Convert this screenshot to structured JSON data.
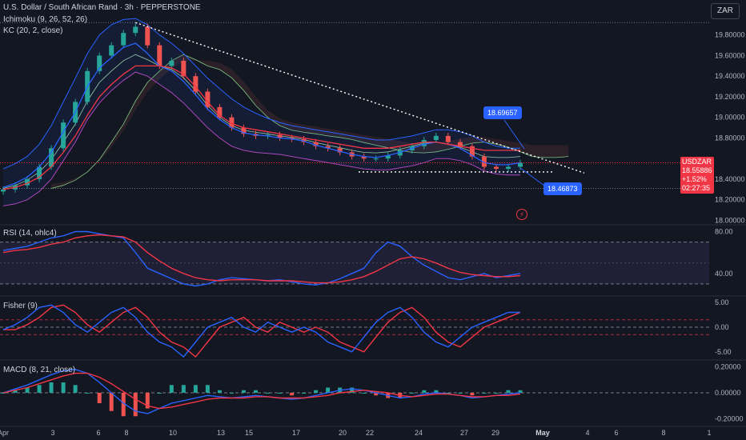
{
  "header": {
    "title": "U.S. Dollar / South African Rand · 3h · PEPPERSTONE",
    "ichimoku": "Ichimoku (9, 26, 52, 26)",
    "kc": "KC (20, 2, close)",
    "currency": "ZAR"
  },
  "price_panel": {
    "symbol": "USDZAR",
    "last_price": "18.55886",
    "change": "+1.52%",
    "countdown": "02:27:35",
    "callout_high": "18.69657",
    "callout_low": "18.46873"
  },
  "indicators": {
    "rsi": "RSI (14, ohlc4)",
    "fisher": "Fisher (9)",
    "macd": "MACD (8, 21, close)"
  },
  "colors": {
    "background": "#131722",
    "up": "#26a69a",
    "down": "#ef5350",
    "blue": "#2962ff",
    "red": "#f23645"
  },
  "chart_data": [
    {
      "type": "candlestick",
      "panel": "price",
      "yticks": [
        "19.80000",
        "19.60000",
        "19.40000",
        "19.20000",
        "19.00000",
        "18.80000",
        "18.40000",
        "18.20000",
        "18.00000"
      ],
      "ylim": [
        17.98,
        20.0
      ],
      "xticks": [
        "Apr",
        "3",
        "6",
        "8",
        "10",
        "13",
        "15",
        "17",
        "20",
        "22",
        "24",
        "27",
        "29",
        "May",
        "4",
        "6",
        "8",
        "1"
      ],
      "close": [
        18.3,
        18.34,
        18.4,
        18.52,
        18.7,
        18.95,
        19.15,
        19.45,
        19.6,
        19.7,
        19.82,
        19.88,
        19.7,
        19.5,
        19.55,
        19.4,
        19.25,
        19.1,
        19.0,
        18.9,
        18.84,
        18.82,
        18.83,
        18.8,
        18.79,
        18.76,
        18.72,
        18.7,
        18.66,
        18.62,
        18.6,
        18.6,
        18.63,
        18.68,
        18.72,
        18.78,
        18.82,
        18.76,
        18.72,
        18.62,
        18.52,
        18.5,
        18.52,
        18.55886
      ],
      "tenkan": [
        18.32,
        18.36,
        18.42,
        18.52,
        18.66,
        18.86,
        19.05,
        19.3,
        19.48,
        19.58,
        19.68,
        19.72,
        19.62,
        19.5,
        19.45,
        19.35,
        19.22,
        19.08,
        18.98,
        18.9,
        18.85,
        18.83,
        18.82,
        18.8,
        18.79,
        18.77,
        18.73,
        18.7,
        18.67,
        18.64,
        18.62,
        18.61,
        18.63,
        18.66,
        18.7,
        18.74,
        18.76,
        18.74,
        18.7,
        18.63,
        18.56,
        18.54,
        18.54,
        18.56
      ],
      "kijun": [
        18.3,
        18.32,
        18.36,
        18.42,
        18.52,
        18.66,
        18.82,
        19.02,
        19.2,
        19.32,
        19.42,
        19.5,
        19.5,
        19.5,
        19.48,
        19.42,
        19.3,
        19.15,
        19.02,
        18.94,
        18.9,
        18.88,
        18.86,
        18.84,
        18.82,
        18.8,
        18.78,
        18.76,
        18.74,
        18.72,
        18.7,
        18.7,
        18.7,
        18.72,
        18.74,
        18.76,
        18.76,
        18.74,
        18.72,
        18.7,
        18.68,
        18.68,
        18.68,
        18.68
      ],
      "kc_upper": [
        18.5,
        18.55,
        18.62,
        18.74,
        18.92,
        19.15,
        19.38,
        19.62,
        19.8,
        19.9,
        19.95,
        19.96,
        19.9,
        19.8,
        19.72,
        19.62,
        19.5,
        19.38,
        19.28,
        19.18,
        19.1,
        19.04,
        18.99,
        18.95,
        18.92,
        18.9,
        18.88,
        18.86,
        18.84,
        18.82,
        18.8,
        18.78,
        18.78,
        18.8,
        18.82,
        18.85,
        18.88,
        18.88,
        18.86,
        18.82,
        18.76,
        18.72,
        18.7,
        18.7
      ],
      "kc_lower": [
        18.14,
        18.16,
        18.2,
        18.28,
        18.4,
        18.58,
        18.76,
        18.98,
        19.14,
        19.26,
        19.36,
        19.44,
        19.4,
        19.32,
        19.24,
        19.14,
        19.02,
        18.9,
        18.8,
        18.72,
        18.68,
        18.66,
        18.65,
        18.64,
        18.62,
        18.6,
        18.58,
        18.56,
        18.54,
        18.52,
        18.5,
        18.49,
        18.49,
        18.51,
        18.53,
        18.56,
        18.6,
        18.6,
        18.58,
        18.54,
        18.48,
        18.45,
        18.44,
        18.44
      ],
      "trendline": [
        [
          11,
          19.92
        ],
        [
          43,
          18.46
        ]
      ]
    },
    {
      "type": "line",
      "panel": "rsi",
      "title": "RSI (14, ohlc4)",
      "yticks": [
        "80.00",
        "40.00"
      ],
      "ylim": [
        20,
        85
      ],
      "bands": [
        70,
        30
      ],
      "rsi": [
        62,
        64,
        66,
        70,
        74,
        76,
        80,
        80,
        78,
        76,
        74,
        60,
        45,
        40,
        35,
        30,
        28,
        30,
        34,
        36,
        35,
        34,
        33,
        34,
        32,
        30,
        29,
        31,
        35,
        40,
        45,
        60,
        70,
        66,
        56,
        48,
        42,
        36,
        34,
        37,
        40,
        36,
        38,
        40
      ],
      "signal": [
        60,
        62,
        63,
        65,
        68,
        70,
        74,
        76,
        77,
        76,
        75,
        70,
        60,
        52,
        45,
        40,
        36,
        34,
        33,
        34,
        34,
        34,
        33,
        33,
        33,
        32,
        31,
        31,
        32,
        34,
        37,
        42,
        48,
        54,
        56,
        54,
        50,
        45,
        41,
        39,
        38,
        37,
        37,
        38
      ]
    },
    {
      "type": "line",
      "panel": "fisher",
      "title": "Fisher (9)",
      "yticks": [
        "5.00",
        "0.00",
        "-5.00"
      ],
      "ylim": [
        -6,
        6
      ],
      "fisher": [
        -0.5,
        0.5,
        2,
        4,
        4.5,
        3,
        0.5,
        -1,
        1,
        3,
        4,
        2,
        -1,
        -3,
        -4,
        -6,
        -3,
        0,
        1,
        2,
        0,
        -1,
        1,
        0,
        -1,
        0,
        -1,
        -3,
        -4,
        -5,
        -2,
        1,
        3,
        4,
        2,
        -1,
        -3,
        -4,
        -2,
        0,
        1,
        2,
        3,
        3
      ]
    },
    {
      "type": "bar",
      "panel": "macd",
      "title": "MACD (8, 21, close)",
      "yticks": [
        "0.20000",
        "0.00000",
        "-0.20000"
      ],
      "ylim": [
        -0.24,
        0.24
      ],
      "macd": [
        0.0,
        0.03,
        0.06,
        0.1,
        0.14,
        0.17,
        0.18,
        0.15,
        0.08,
        0.0,
        -0.08,
        -0.14,
        -0.16,
        -0.12,
        -0.08,
        -0.06,
        -0.04,
        -0.02,
        -0.03,
        -0.04,
        -0.03,
        -0.02,
        -0.03,
        -0.04,
        -0.05,
        -0.04,
        -0.02,
        0.0,
        0.02,
        0.03,
        0.02,
        0.0,
        -0.02,
        -0.04,
        -0.03,
        -0.01,
        0.0,
        -0.01,
        -0.02,
        -0.04,
        -0.03,
        -0.02,
        -0.01,
        0.0
      ],
      "signal": [
        0.0,
        0.02,
        0.04,
        0.07,
        0.1,
        0.13,
        0.15,
        0.15,
        0.12,
        0.07,
        0.01,
        -0.05,
        -0.1,
        -0.12,
        -0.11,
        -0.09,
        -0.07,
        -0.05,
        -0.04,
        -0.04,
        -0.04,
        -0.03,
        -0.03,
        -0.04,
        -0.04,
        -0.04,
        -0.03,
        -0.02,
        0.0,
        0.01,
        0.02,
        0.01,
        0.0,
        -0.02,
        -0.03,
        -0.02,
        -0.01,
        -0.01,
        -0.02,
        -0.03,
        -0.03,
        -0.02,
        -0.02,
        -0.01
      ]
    }
  ]
}
